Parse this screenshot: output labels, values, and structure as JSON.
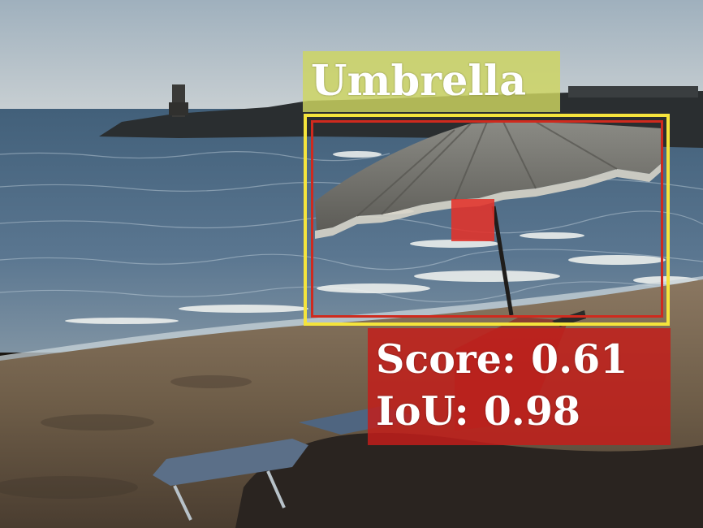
{
  "scene": {
    "description_icon": "beach-umbrella-photo-icon",
    "colors": {
      "sky": "#b9c4cc",
      "sea": "#4e6a82",
      "sand": "#7a6850",
      "umbrella": "#7d7c76",
      "prediction_box": "#f5e43c",
      "ground_truth_box": "#cf2a1e",
      "label_background": "#ced660",
      "metrics_background": "#c41e1a"
    }
  },
  "detection": {
    "class_label": "Umbrella",
    "score_label": "Score:",
    "score_value": "0.61",
    "iou_label": "IoU:",
    "iou_value": "0.98"
  }
}
